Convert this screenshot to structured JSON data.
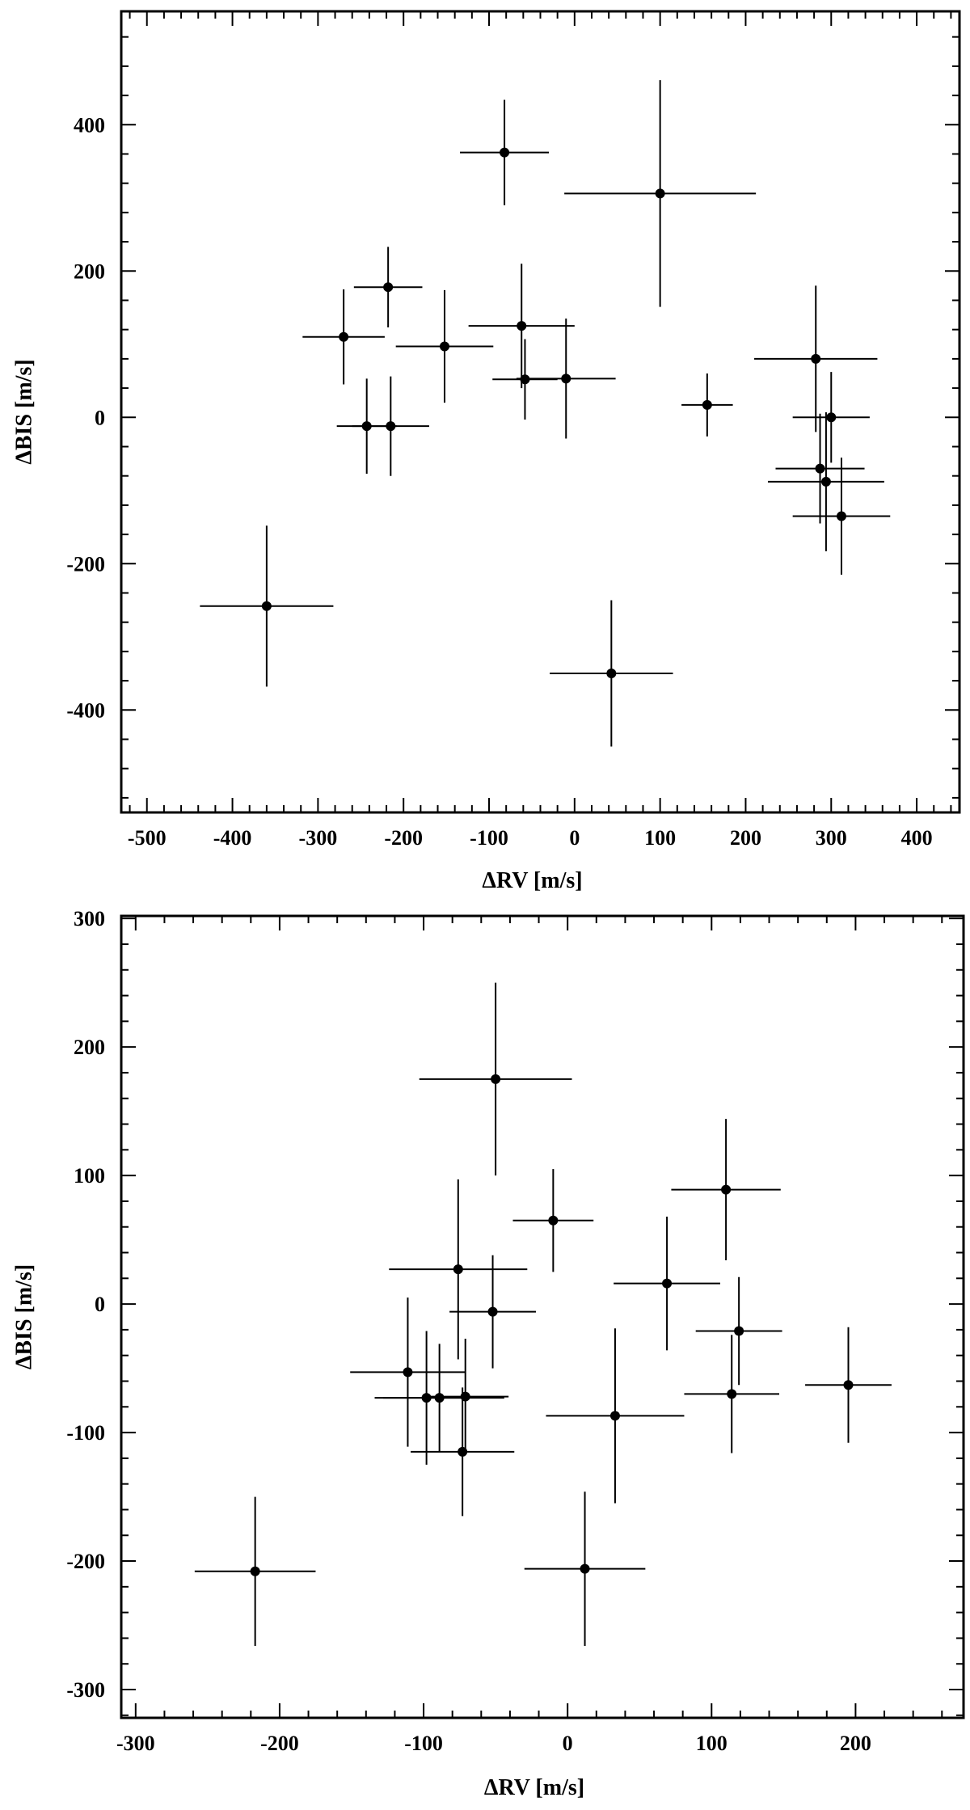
{
  "chart_data": [
    {
      "type": "scatter",
      "xlabel": "ΔRV [m/s]",
      "ylabel": "ΔBIS [m/s]",
      "xlim": [
        -530,
        450
      ],
      "ylim": [
        -540,
        555
      ],
      "xticks_major": [
        -500,
        -400,
        -300,
        -200,
        -100,
        0,
        100,
        200,
        300,
        400
      ],
      "xticks_minor_step": 20,
      "yticks_major": [
        -400,
        -200,
        0,
        200,
        400
      ],
      "yticks_minor_step": 40,
      "grid": false,
      "points": [
        {
          "x": -360,
          "y": -258,
          "xerr": 78,
          "yerr": 110
        },
        {
          "x": -270,
          "y": 110,
          "xerr": 48,
          "yerr": 65
        },
        {
          "x": -243,
          "y": -12,
          "xerr": 35,
          "yerr": 65
        },
        {
          "x": -218,
          "y": 178,
          "xerr": 40,
          "yerr": 55
        },
        {
          "x": -215,
          "y": -12,
          "xerr": 45,
          "yerr": 68
        },
        {
          "x": -152,
          "y": 97,
          "xerr": 57,
          "yerr": 77
        },
        {
          "x": -82,
          "y": 362,
          "xerr": 52,
          "yerr": 72
        },
        {
          "x": -62,
          "y": 125,
          "xerr": 62,
          "yerr": 85
        },
        {
          "x": -58,
          "y": 52,
          "xerr": 38,
          "yerr": 55
        },
        {
          "x": -10,
          "y": 53,
          "xerr": 58,
          "yerr": 82
        },
        {
          "x": 43,
          "y": -350,
          "xerr": 72,
          "yerr": 100
        },
        {
          "x": 100,
          "y": 306,
          "xerr": 112,
          "yerr": 155
        },
        {
          "x": 155,
          "y": 17,
          "xerr": 30,
          "yerr": 43
        },
        {
          "x": 282,
          "y": 80,
          "xerr": 72,
          "yerr": 100
        },
        {
          "x": 287,
          "y": -70,
          "xerr": 52,
          "yerr": 75
        },
        {
          "x": 294,
          "y": -88,
          "xerr": 68,
          "yerr": 95
        },
        {
          "x": 300,
          "y": 0,
          "xerr": 45,
          "yerr": 62
        },
        {
          "x": 312,
          "y": -135,
          "xerr": 57,
          "yerr": 80
        }
      ]
    },
    {
      "type": "scatter",
      "xlabel": "ΔRV [m/s]",
      "ylabel": "ΔBIS [m/s]",
      "xlim": [
        -310,
        275
      ],
      "ylim": [
        -322,
        302
      ],
      "xticks_major": [
        -300,
        -200,
        -100,
        0,
        100,
        200
      ],
      "xticks_minor_step": 20,
      "yticks_major": [
        -300,
        -200,
        -100,
        0,
        100,
        200,
        300
      ],
      "yticks_minor_step": 20,
      "grid": false,
      "points": [
        {
          "x": -217,
          "y": -208,
          "xerr": 42,
          "yerr": 58
        },
        {
          "x": -111,
          "y": -53,
          "xerr": 40,
          "yerr": 58
        },
        {
          "x": -98,
          "y": -73,
          "xerr": 30,
          "yerr": 52
        },
        {
          "x": -89,
          "y": -73,
          "xerr": 45,
          "yerr": 42
        },
        {
          "x": -76,
          "y": 27,
          "xerr": 48,
          "yerr": 70
        },
        {
          "x": -73,
          "y": -115,
          "xerr": 36,
          "yerr": 50
        },
        {
          "x": -71,
          "y": -72,
          "xerr": 30,
          "yerr": 45
        },
        {
          "x": -52,
          "y": -6,
          "xerr": 30,
          "yerr": 44
        },
        {
          "x": -50,
          "y": 175,
          "xerr": 53,
          "yerr": 75
        },
        {
          "x": -10,
          "y": 65,
          "xerr": 28,
          "yerr": 40
        },
        {
          "x": 12,
          "y": -206,
          "xerr": 42,
          "yerr": 60
        },
        {
          "x": 33,
          "y": -87,
          "xerr": 48,
          "yerr": 68
        },
        {
          "x": 69,
          "y": 16,
          "xerr": 37,
          "yerr": 52
        },
        {
          "x": 110,
          "y": 89,
          "xerr": 38,
          "yerr": 55
        },
        {
          "x": 114,
          "y": -70,
          "xerr": 33,
          "yerr": 46
        },
        {
          "x": 119,
          "y": -21,
          "xerr": 30,
          "yerr": 42
        },
        {
          "x": 195,
          "y": -63,
          "xerr": 30,
          "yerr": 45
        }
      ]
    }
  ]
}
